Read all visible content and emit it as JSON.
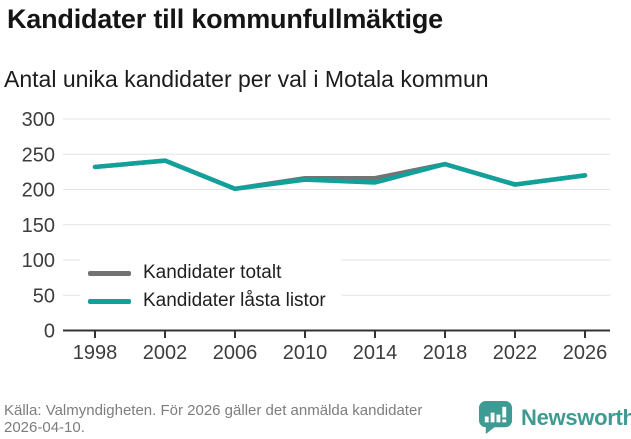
{
  "header": {
    "title": "Kandidater till kommunfullmäktige",
    "subtitle": "Antal unika kandidater per val i Motala kommun"
  },
  "chart_data": {
    "type": "line",
    "title": "Kandidater till kommunfullmäktige",
    "subtitle": "Antal unika kandidater per val i Motala kommun",
    "categories": [
      "1998",
      "2002",
      "2006",
      "2010",
      "2014",
      "2018",
      "2022",
      "2026"
    ],
    "series": [
      {
        "name": "Kandidater totalt",
        "color": "#737373",
        "values": [
          232,
          241,
          201,
          216,
          216,
          236,
          207,
          220
        ]
      },
      {
        "name": "Kandidater låsta listor",
        "color": "#12a19a",
        "values": [
          232,
          241,
          201,
          214,
          210,
          236,
          207,
          220
        ]
      }
    ],
    "xlabel": "",
    "ylabel": "",
    "ylim": [
      0,
      300
    ],
    "yticks": [
      0,
      50,
      100,
      150,
      200,
      250,
      300
    ],
    "grid": "horizontal",
    "legend_position": "inside-bottom-left"
  },
  "footer": {
    "source": "Källa: Valmyndigheten. För 2026 gäller det anmälda kandidater 2026-04-10.",
    "brand": "Newsworthy"
  },
  "colors": {
    "accent": "#12a19a",
    "total_line": "#737373",
    "grid": "#e3e3e3",
    "axis": "#333333",
    "brand": "#3e9b94"
  }
}
